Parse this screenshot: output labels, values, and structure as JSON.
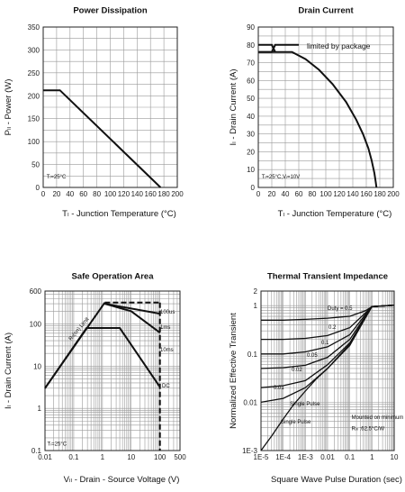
{
  "chart_data": [
    {
      "id": "power",
      "type": "line",
      "title": "Power Dissipation",
      "xlabel": "Tₗ - Junction Temperature (°C)",
      "ylabel": "Pₗₗ - Power (W)",
      "xlim": [
        0,
        200
      ],
      "ylim": [
        0,
        350
      ],
      "xticks": [
        "0",
        "20",
        "40",
        "60",
        "80",
        "100",
        "120",
        "140",
        "160",
        "180",
        "200"
      ],
      "yticks": [
        "0",
        "50",
        "100",
        "150",
        "200",
        "250",
        "300",
        "350"
      ],
      "annotations": [
        {
          "text": "Tₗ=25°C",
          "x": 5,
          "y": 20
        }
      ],
      "series": [
        {
          "x": [
            0,
            25,
            175
          ],
          "y": [
            212,
            212,
            0
          ]
        }
      ],
      "grid": true
    },
    {
      "id": "current",
      "type": "line",
      "title": "Drain Current",
      "xlabel": "Tₗ - Junction Temperature (°C)",
      "ylabel": "Iₗ - Drain Current (A)",
      "xlim": [
        0,
        200
      ],
      "ylim": [
        0,
        90
      ],
      "xticks": [
        "0",
        "20",
        "40",
        "60",
        "80",
        "100",
        "120",
        "140",
        "160",
        "180",
        "200"
      ],
      "yticks": [
        "0",
        "10",
        "20",
        "30",
        "40",
        "50",
        "60",
        "70",
        "80",
        "90"
      ],
      "annotations": [
        {
          "text": "limited by package",
          "x": 72,
          "y": 80
        },
        {
          "text": "Tₗ=25°C,Vₗ=10V",
          "x": 5,
          "y": 5
        }
      ],
      "series": [
        {
          "x": [
            0,
            20,
            25
          ],
          "y": [
            80,
            80,
            76
          ]
        },
        {
          "x": [
            0,
            20,
            25,
            60
          ],
          "y": [
            76,
            76,
            80,
            80
          ]
        },
        {
          "x": [
            0,
            50,
            70,
            90,
            110,
            130,
            145,
            155,
            163,
            168,
            172,
            174,
            175
          ],
          "y": [
            76,
            76,
            72,
            66,
            58,
            48,
            38,
            30,
            22,
            15,
            8,
            3,
            0
          ]
        }
      ],
      "grid": true
    },
    {
      "id": "soa",
      "type": "line",
      "title": "Safe Operation Area",
      "xlabel": "Vₗₗ - Drain - Source Voltage (V)",
      "ylabel": "Iₗ - Drain Current (A)",
      "xscale": "log",
      "yscale": "log",
      "xlim": [
        0.01,
        500
      ],
      "ylim": [
        0.1,
        600
      ],
      "xticks": [
        "0.01",
        "0.1",
        "1",
        "10",
        "100",
        "500"
      ],
      "yticks": [
        "0.1",
        "1",
        "10",
        "100",
        "600"
      ],
      "annotations": [
        {
          "text": "Tₗ=25°C",
          "x": 0.012,
          "y": 0.13
        },
        {
          "text": "Rₗₗ(on) Limit",
          "x": 0.08,
          "y": 40
        }
      ],
      "series": [
        {
          "name": "100us",
          "x": [
            0.01,
            1.2,
            100
          ],
          "y": [
            3,
            320,
            320
          ]
        },
        {
          "name": "1ms",
          "x": [
            1.2,
            100
          ],
          "y": [
            300,
            175
          ]
        },
        {
          "name": "10ms",
          "x": [
            1.2,
            10,
            100
          ],
          "y": [
            300,
            200,
            62
          ]
        },
        {
          "name": "DC",
          "x": [
            0.01,
            0.28,
            4,
            100
          ],
          "y": [
            3,
            80,
            80,
            3.2
          ]
        },
        {
          "x": [
            100,
            100
          ],
          "y": [
            320,
            0.1
          ]
        }
      ],
      "grid": true
    },
    {
      "id": "thermal",
      "type": "line",
      "title": "Thermal Transient Impedance",
      "xlabel": "Square Wave Pulse Duration (sec)",
      "ylabel": "Normalized Effective Transient",
      "xscale": "log",
      "yscale": "log",
      "xlim": [
        1e-05,
        10
      ],
      "ylim": [
        0.001,
        2
      ],
      "xticks": [
        "1E-5",
        "1E-4",
        "1E-3",
        "0.01",
        "0.1",
        "1",
        "10"
      ],
      "yticks": [
        "1E-3",
        "0.01",
        "0.1",
        "1",
        "2"
      ],
      "annotations": [
        {
          "text": "Mounted on minimum pad",
          "x": 0.12,
          "y": 0.0045
        },
        {
          "text": "Rₗₗₗ :62.5°C/W",
          "x": 0.12,
          "y": 0.0026
        },
        {
          "text": "Single Pulse",
          "x": 0.0002,
          "y": 0.0085
        },
        {
          "text": "Duty = 0.5",
          "x": 0.01,
          "y": 0.82
        }
      ],
      "series": [
        {
          "name": "0.5",
          "x": [
            1e-05,
            0.0001,
            0.001,
            0.01,
            0.1,
            0.5,
            1,
            10
          ],
          "y": [
            0.5,
            0.5,
            0.52,
            0.55,
            0.6,
            0.78,
            0.95,
            1.02
          ]
        },
        {
          "name": "0.2",
          "x": [
            1e-05,
            0.0001,
            0.001,
            0.01,
            0.1,
            0.5,
            1,
            10
          ],
          "y": [
            0.2,
            0.2,
            0.21,
            0.24,
            0.35,
            0.7,
            0.95,
            1.02
          ]
        },
        {
          "name": "0.1",
          "x": [
            1e-05,
            0.0001,
            0.001,
            0.01,
            0.1,
            0.5,
            1,
            10
          ],
          "y": [
            0.1,
            0.1,
            0.11,
            0.14,
            0.25,
            0.65,
            0.95,
            1.02
          ]
        },
        {
          "name": "0.05",
          "x": [
            1e-05,
            0.0001,
            0.001,
            0.01,
            0.1,
            0.5,
            1,
            10
          ],
          "y": [
            0.05,
            0.052,
            0.058,
            0.085,
            0.2,
            0.6,
            0.95,
            1.02
          ]
        },
        {
          "name": "0.02",
          "x": [
            1e-05,
            0.0001,
            0.001,
            0.01,
            0.1,
            0.5,
            1,
            10
          ],
          "y": [
            0.02,
            0.022,
            0.028,
            0.06,
            0.17,
            0.58,
            0.95,
            1.02
          ]
        },
        {
          "name": "0.01",
          "x": [
            1e-05,
            0.0001,
            0.001,
            0.01,
            0.1,
            0.5,
            1,
            10
          ],
          "y": [
            0.01,
            0.012,
            0.02,
            0.05,
            0.16,
            0.57,
            0.95,
            1.02
          ]
        },
        {
          "name": "Single Pulse",
          "x": [
            1e-05,
            3e-05,
            0.0001,
            0.0003,
            0.001,
            0.003,
            0.01,
            0.1,
            0.5,
            1,
            10
          ],
          "y": [
            0.001,
            0.002,
            0.0045,
            0.009,
            0.017,
            0.03,
            0.05,
            0.15,
            0.55,
            0.95,
            1.02
          ]
        }
      ],
      "grid": true
    }
  ]
}
